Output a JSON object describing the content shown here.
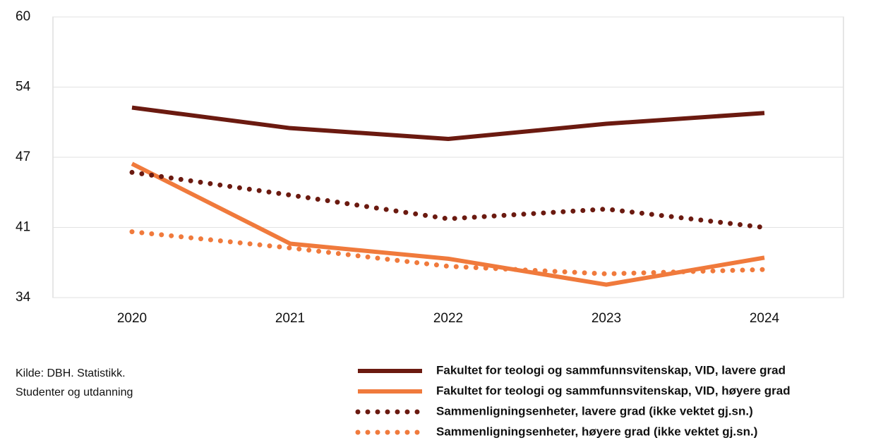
{
  "chart_data": {
    "type": "line",
    "categories": [
      "2020",
      "2021",
      "2022",
      "2023",
      "2024"
    ],
    "series": [
      {
        "name": "Fakultet for teologi og sammfunnsvitenskap, VID, lavere grad",
        "color": "#6b1a10",
        "style": "solid",
        "values": [
          51.6,
          49.7,
          48.7,
          50.1,
          51.1
        ]
      },
      {
        "name": "Fakultet for teologi og sammfunnsvitenskap, VID, høyere grad",
        "color": "#f07a3c",
        "style": "solid",
        "values": [
          46.4,
          39.0,
          37.6,
          35.2,
          37.7
        ]
      },
      {
        "name": "Sammenligningsenheter, lavere grad (ikke vektet gj.sn.)",
        "color": "#6b1a10",
        "style": "dotted",
        "values": [
          45.6,
          43.5,
          41.3,
          42.2,
          40.5
        ]
      },
      {
        "name": "Sammenligningsenheter, høyere grad (ikke vektet gj.sn.)",
        "color": "#f07a3c",
        "style": "dotted",
        "values": [
          40.1,
          38.6,
          36.9,
          36.2,
          36.6
        ]
      }
    ],
    "ylim": [
      34,
      60
    ],
    "yticks": [
      34,
      {
        "value": 40.5,
        "label": "41"
      },
      47,
      {
        "value": 53.5,
        "label": "54"
      },
      60
    ],
    "grid": true,
    "legend": "bottom-right",
    "source": [
      "Kilde: DBH. Statistikk.",
      "Studenter og utdanning"
    ]
  }
}
